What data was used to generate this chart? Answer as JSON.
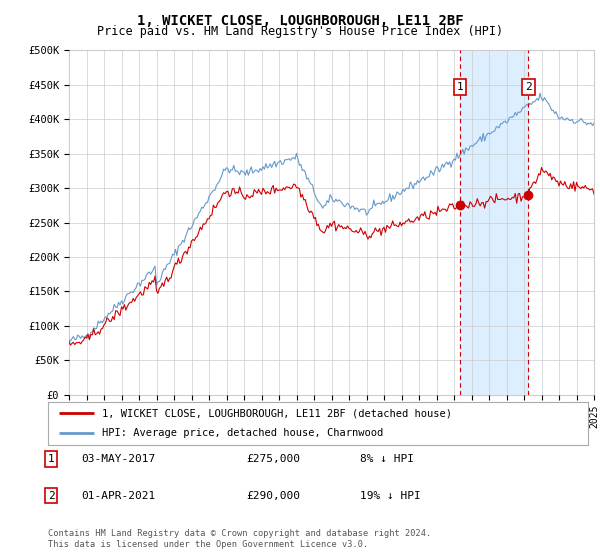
{
  "title": "1, WICKET CLOSE, LOUGHBOROUGH, LE11 2BF",
  "subtitle": "Price paid vs. HM Land Registry's House Price Index (HPI)",
  "ylabel_ticks": [
    "£0",
    "£50K",
    "£100K",
    "£150K",
    "£200K",
    "£250K",
    "£300K",
    "£350K",
    "£400K",
    "£450K",
    "£500K"
  ],
  "ytick_values": [
    0,
    50000,
    100000,
    150000,
    200000,
    250000,
    300000,
    350000,
    400000,
    450000,
    500000
  ],
  "ylim": [
    0,
    500000
  ],
  "x_start_year": 1995,
  "x_end_year": 2025,
  "red_line_color": "#cc0000",
  "blue_line_color": "#6699cc",
  "shade_color": "#ddeeff",
  "sale1_year": 2017.33,
  "sale1_price": 275000,
  "sale1_label": "1",
  "sale1_date": "03-MAY-2017",
  "sale1_hpi_diff": "8% ↓ HPI",
  "sale2_year": 2021.25,
  "sale2_price": 290000,
  "sale2_label": "2",
  "sale2_date": "01-APR-2021",
  "sale2_hpi_diff": "19% ↓ HPI",
  "legend_entry1": "1, WICKET CLOSE, LOUGHBOROUGH, LE11 2BF (detached house)",
  "legend_entry2": "HPI: Average price, detached house, Charnwood",
  "footer": "Contains HM Land Registry data © Crown copyright and database right 2024.\nThis data is licensed under the Open Government Licence v3.0.",
  "bg_color": "#ffffff",
  "grid_color": "#cccccc"
}
